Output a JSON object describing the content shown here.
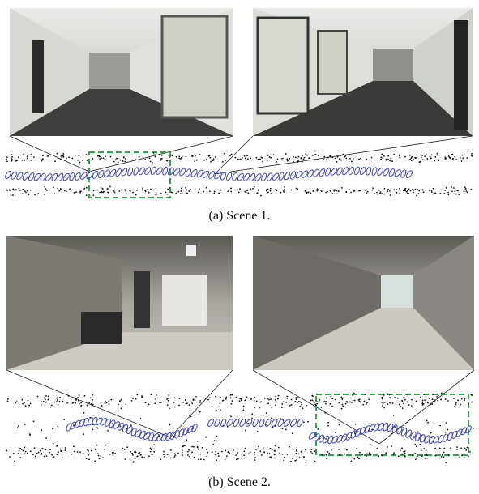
{
  "figure": {
    "subfigures": [
      {
        "caption": "(a) Scene 1."
      },
      {
        "caption": "(b) Scene 2."
      }
    ]
  }
}
